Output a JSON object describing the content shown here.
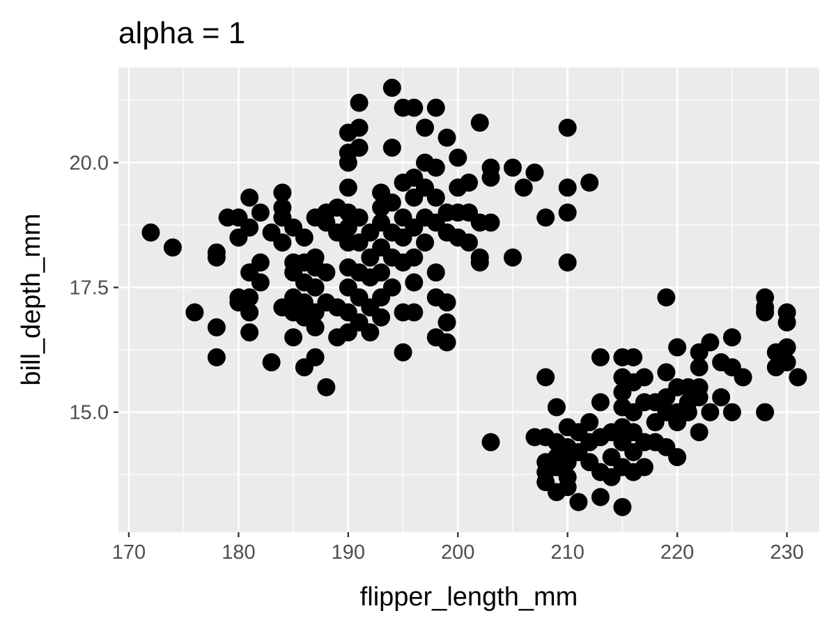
{
  "chart_data": {
    "type": "scatter",
    "title": "alpha = 1",
    "xlabel": "flipper_length_mm",
    "ylabel": "bill_depth_mm",
    "xlim": [
      169.05,
      232.95
    ],
    "ylim": [
      12.595,
      21.905
    ],
    "x_ticks": [
      170,
      180,
      190,
      200,
      210,
      220,
      230
    ],
    "x_tick_labels": [
      "170",
      "180",
      "190",
      "200",
      "210",
      "220",
      "230"
    ],
    "y_ticks": [
      15.0,
      17.5,
      20.0
    ],
    "y_tick_labels": [
      "15.0",
      "17.5",
      "20.0"
    ],
    "grid": true,
    "point_color": "#000000",
    "panel_color": "#ebebeb",
    "grid_color": "#ffffff",
    "points": [
      [
        172,
        18.6
      ],
      [
        174,
        18.3
      ],
      [
        176,
        17.0
      ],
      [
        178,
        18.2
      ],
      [
        178,
        18.1
      ],
      [
        178,
        16.7
      ],
      [
        178,
        16.1
      ],
      [
        179,
        18.9
      ],
      [
        180,
        18.9
      ],
      [
        180,
        18.5
      ],
      [
        180,
        17.3
      ],
      [
        180,
        17.2
      ],
      [
        181,
        19.3
      ],
      [
        181,
        18.7
      ],
      [
        181,
        17.8
      ],
      [
        181,
        17.3
      ],
      [
        181,
        17.0
      ],
      [
        181,
        16.6
      ],
      [
        182,
        19.0
      ],
      [
        182,
        18.0
      ],
      [
        182,
        17.6
      ],
      [
        183,
        18.6
      ],
      [
        183,
        16.0
      ],
      [
        184,
        19.4
      ],
      [
        184,
        19.1
      ],
      [
        184,
        18.9
      ],
      [
        184,
        18.4
      ],
      [
        184,
        17.1
      ],
      [
        185,
        18.7
      ],
      [
        185,
        18.0
      ],
      [
        185,
        17.8
      ],
      [
        185,
        17.3
      ],
      [
        185,
        17.0
      ],
      [
        185,
        16.5
      ],
      [
        186,
        18.5
      ],
      [
        186,
        18.0
      ],
      [
        186,
        17.6
      ],
      [
        186,
        17.2
      ],
      [
        186,
        16.9
      ],
      [
        186,
        15.9
      ],
      [
        187,
        18.9
      ],
      [
        187,
        18.1
      ],
      [
        187,
        17.9
      ],
      [
        187,
        17.5
      ],
      [
        187,
        17.0
      ],
      [
        187,
        16.7
      ],
      [
        187,
        16.1
      ],
      [
        188,
        19.0
      ],
      [
        188,
        18.8
      ],
      [
        188,
        17.8
      ],
      [
        188,
        17.2
      ],
      [
        188,
        15.5
      ],
      [
        189,
        19.1
      ],
      [
        189,
        18.6
      ],
      [
        189,
        17.1
      ],
      [
        189,
        16.5
      ],
      [
        190,
        20.6
      ],
      [
        190,
        20.2
      ],
      [
        190,
        20.0
      ],
      [
        190,
        19.5
      ],
      [
        190,
        19.0
      ],
      [
        190,
        18.7
      ],
      [
        190,
        18.4
      ],
      [
        190,
        17.9
      ],
      [
        190,
        17.5
      ],
      [
        190,
        17.0
      ],
      [
        190,
        16.6
      ],
      [
        191,
        21.2
      ],
      [
        191,
        20.7
      ],
      [
        191,
        20.3
      ],
      [
        191,
        18.9
      ],
      [
        191,
        18.4
      ],
      [
        191,
        17.8
      ],
      [
        191,
        17.3
      ],
      [
        191,
        16.8
      ],
      [
        192,
        18.6
      ],
      [
        192,
        18.1
      ],
      [
        192,
        17.7
      ],
      [
        192,
        17.1
      ],
      [
        192,
        16.6
      ],
      [
        193,
        19.4
      ],
      [
        193,
        19.1
      ],
      [
        193,
        18.8
      ],
      [
        193,
        18.3
      ],
      [
        193,
        17.8
      ],
      [
        193,
        17.3
      ],
      [
        193,
        16.9
      ],
      [
        194,
        21.5
      ],
      [
        194,
        20.3
      ],
      [
        194,
        19.2
      ],
      [
        194,
        18.6
      ],
      [
        194,
        18.1
      ],
      [
        194,
        17.5
      ],
      [
        195,
        21.1
      ],
      [
        195,
        19.6
      ],
      [
        195,
        18.9
      ],
      [
        195,
        18.5
      ],
      [
        195,
        18.0
      ],
      [
        195,
        17.0
      ],
      [
        195,
        16.2
      ],
      [
        196,
        21.1
      ],
      [
        196,
        19.7
      ],
      [
        196,
        19.3
      ],
      [
        196,
        18.7
      ],
      [
        196,
        18.1
      ],
      [
        196,
        17.6
      ],
      [
        196,
        17.0
      ],
      [
        197,
        20.7
      ],
      [
        197,
        20.0
      ],
      [
        197,
        19.5
      ],
      [
        197,
        18.9
      ],
      [
        197,
        18.4
      ],
      [
        198,
        21.1
      ],
      [
        198,
        19.9
      ],
      [
        198,
        19.3
      ],
      [
        198,
        18.8
      ],
      [
        198,
        17.8
      ],
      [
        198,
        17.3
      ],
      [
        198,
        16.5
      ],
      [
        199,
        20.5
      ],
      [
        199,
        19.0
      ],
      [
        199,
        18.6
      ],
      [
        199,
        17.2
      ],
      [
        199,
        16.8
      ],
      [
        199,
        16.4
      ],
      [
        200,
        20.1
      ],
      [
        200,
        19.5
      ],
      [
        200,
        19.0
      ],
      [
        200,
        18.5
      ],
      [
        201,
        19.6
      ],
      [
        201,
        19.0
      ],
      [
        201,
        18.4
      ],
      [
        202,
        20.8
      ],
      [
        202,
        18.8
      ],
      [
        202,
        18.1
      ],
      [
        202,
        18.0
      ],
      [
        203,
        19.9
      ],
      [
        203,
        19.7
      ],
      [
        203,
        18.8
      ],
      [
        205,
        19.9
      ],
      [
        205,
        18.1
      ],
      [
        206,
        19.5
      ],
      [
        207,
        19.8
      ],
      [
        208,
        18.9
      ],
      [
        210,
        20.7
      ],
      [
        210,
        19.5
      ],
      [
        210,
        19.0
      ],
      [
        210,
        18.0
      ],
      [
        212,
        19.6
      ],
      [
        203,
        14.4
      ],
      [
        207,
        14.5
      ],
      [
        208,
        15.7
      ],
      [
        208,
        14.5
      ],
      [
        208,
        14.0
      ],
      [
        208,
        13.8
      ],
      [
        208,
        13.6
      ],
      [
        209,
        15.1
      ],
      [
        209,
        14.4
      ],
      [
        209,
        14.1
      ],
      [
        209,
        13.9
      ],
      [
        209,
        13.4
      ],
      [
        210,
        14.7
      ],
      [
        210,
        14.3
      ],
      [
        210,
        14.0
      ],
      [
        210,
        13.7
      ],
      [
        210,
        13.5
      ],
      [
        211,
        14.6
      ],
      [
        211,
        14.2
      ],
      [
        211,
        13.2
      ],
      [
        212,
        14.8
      ],
      [
        212,
        14.4
      ],
      [
        212,
        14.0
      ],
      [
        213,
        16.1
      ],
      [
        213,
        15.2
      ],
      [
        213,
        14.5
      ],
      [
        213,
        13.8
      ],
      [
        213,
        13.3
      ],
      [
        214,
        14.6
      ],
      [
        214,
        14.1
      ],
      [
        214,
        13.7
      ],
      [
        215,
        16.1
      ],
      [
        215,
        15.7
      ],
      [
        215,
        15.4
      ],
      [
        215,
        15.1
      ],
      [
        215,
        14.7
      ],
      [
        215,
        14.4
      ],
      [
        215,
        13.9
      ],
      [
        215,
        13.1
      ],
      [
        216,
        16.1
      ],
      [
        216,
        15.6
      ],
      [
        216,
        15.0
      ],
      [
        216,
        14.6
      ],
      [
        216,
        14.2
      ],
      [
        216,
        13.8
      ],
      [
        217,
        15.7
      ],
      [
        217,
        15.2
      ],
      [
        217,
        14.4
      ],
      [
        217,
        13.9
      ],
      [
        218,
        15.2
      ],
      [
        218,
        14.8
      ],
      [
        218,
        14.4
      ],
      [
        219,
        17.3
      ],
      [
        219,
        15.8
      ],
      [
        219,
        15.3
      ],
      [
        219,
        15.0
      ],
      [
        219,
        14.3
      ],
      [
        220,
        16.3
      ],
      [
        220,
        15.5
      ],
      [
        220,
        15.0
      ],
      [
        220,
        14.8
      ],
      [
        220,
        14.1
      ],
      [
        221,
        15.5
      ],
      [
        221,
        15.2
      ],
      [
        221,
        15.0
      ],
      [
        222,
        16.2
      ],
      [
        222,
        15.9
      ],
      [
        222,
        15.5
      ],
      [
        222,
        15.3
      ],
      [
        222,
        14.6
      ],
      [
        223,
        16.4
      ],
      [
        223,
        15.0
      ],
      [
        224,
        16.0
      ],
      [
        224,
        15.3
      ],
      [
        225,
        16.5
      ],
      [
        225,
        15.9
      ],
      [
        225,
        15.0
      ],
      [
        226,
        15.7
      ],
      [
        228,
        17.3
      ],
      [
        228,
        17.1
      ],
      [
        228,
        17.0
      ],
      [
        228,
        15.0
      ],
      [
        229,
        16.2
      ],
      [
        229,
        15.9
      ],
      [
        230,
        17.0
      ],
      [
        230,
        16.8
      ],
      [
        230,
        16.3
      ],
      [
        230,
        16.0
      ],
      [
        231,
        15.7
      ]
    ]
  }
}
